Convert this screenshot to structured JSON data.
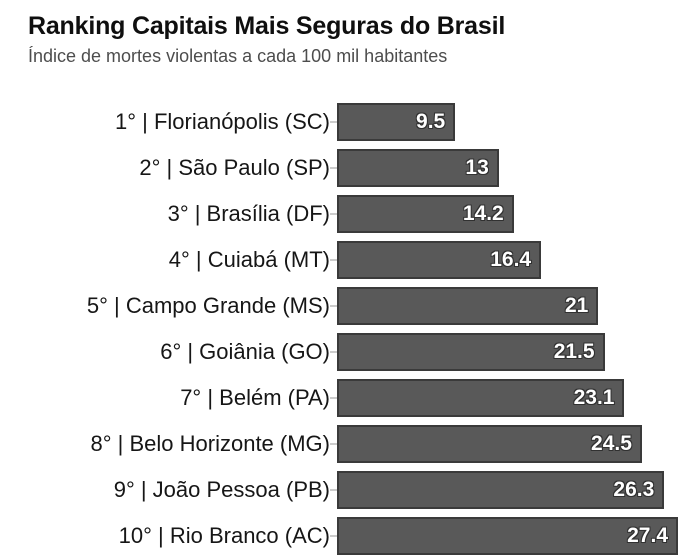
{
  "chart_data": {
    "type": "bar",
    "orientation": "horizontal",
    "title": "Ranking Capitais Mais Seguras do Brasil",
    "subtitle": "Índice de mortes violentas a cada 100 mil habitantes",
    "categories": [
      "1° | Florianópolis (SC)",
      "2° | São Paulo (SP)",
      "3° | Brasília (DF)",
      "4° | Cuiabá (MT)",
      "5° | Campo Grande (MS)",
      "6° | Goiânia (GO)",
      "7° | Belém (PA)",
      "8° | Belo Horizonte (MG)",
      "9° | João Pessoa (PB)",
      "10° | Rio Branco (AC)"
    ],
    "values": [
      9.5,
      13,
      14.2,
      16.4,
      21,
      21.5,
      23.1,
      24.5,
      26.3,
      27.4
    ],
    "value_labels": [
      "9.5",
      "13",
      "14.2",
      "16.4",
      "21",
      "21.5",
      "23.1",
      "24.5",
      "26.3",
      "27.4"
    ],
    "xlim": [
      0,
      27.4
    ],
    "grid": false,
    "legend": false,
    "bar_color": "#595959",
    "bar_border_color": "#3a3a3a",
    "value_label_color": "#ffffff",
    "category_label_color": "#161616"
  }
}
